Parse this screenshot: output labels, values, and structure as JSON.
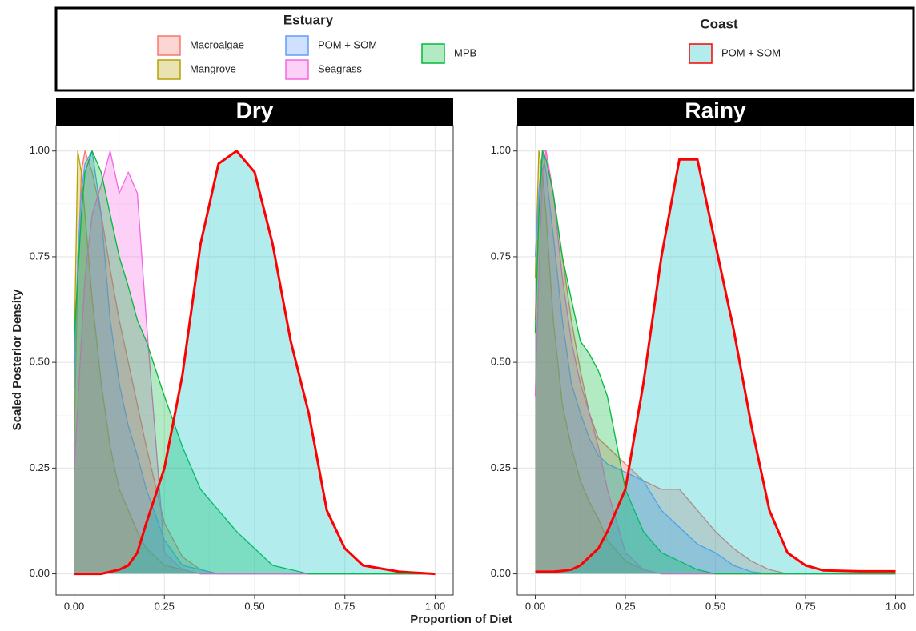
{
  "figure": {
    "xlabel": "Proportion of Diet",
    "ylabel": "Scaled Posterior Density",
    "legend_groups": [
      "Estuary",
      "Coast"
    ]
  },
  "chart_data": [
    {
      "type": "density",
      "title": "Dry",
      "x": [
        0,
        0.01,
        0.02,
        0.03,
        0.05,
        0.075,
        0.1,
        0.125,
        0.15,
        0.175,
        0.2,
        0.25,
        0.3,
        0.35,
        0.4,
        0.45,
        0.5,
        0.55,
        0.6,
        0.65,
        0.7,
        0.75,
        0.8,
        0.9,
        1
      ],
      "xlim": [
        -0.05,
        1.05
      ],
      "ylim": [
        -0.05,
        1.06
      ],
      "xticks": [
        {
          "value": 0,
          "label": "0.00"
        },
        {
          "value": 0.25,
          "label": "0.25"
        },
        {
          "value": 0.5,
          "label": "0.50"
        },
        {
          "value": 0.75,
          "label": "0.75"
        },
        {
          "value": 1,
          "label": "1.00"
        }
      ],
      "yticks": [
        {
          "value": 0,
          "label": "0.00"
        },
        {
          "value": 0.25,
          "label": "0.25"
        },
        {
          "value": 0.5,
          "label": "0.50"
        },
        {
          "value": 0.75,
          "label": "0.75"
        },
        {
          "value": 1,
          "label": "1.00"
        }
      ],
      "grid": true,
      "series": [
        {
          "name": "Macroalgae",
          "group": "Estuary",
          "color": "#F8766D",
          "values": [
            0.3,
            0.7,
            0.95,
            1.0,
            0.95,
            0.85,
            0.72,
            0.6,
            0.5,
            0.4,
            0.3,
            0.12,
            0.04,
            0.01,
            0,
            0,
            0,
            0,
            0,
            0,
            0,
            0,
            0,
            0,
            0
          ]
        },
        {
          "name": "Mangrove",
          "group": "Estuary",
          "color": "#B79F00",
          "values": [
            0.5,
            1.0,
            0.95,
            0.85,
            0.65,
            0.45,
            0.3,
            0.2,
            0.15,
            0.1,
            0.06,
            0.02,
            0.01,
            0,
            0,
            0,
            0,
            0,
            0,
            0,
            0,
            0,
            0,
            0,
            0
          ]
        },
        {
          "name": "POM + SOM",
          "group": "Estuary",
          "color": "#619CFF",
          "values": [
            0.44,
            0.75,
            0.9,
            0.97,
            1.0,
            0.85,
            0.6,
            0.45,
            0.35,
            0.28,
            0.2,
            0.08,
            0.02,
            0.01,
            0,
            0,
            0,
            0,
            0,
            0,
            0,
            0,
            0,
            0,
            0
          ]
        },
        {
          "name": "Seagrass",
          "group": "Estuary",
          "color": "#F564E3",
          "values": [
            0.24,
            0.4,
            0.55,
            0.7,
            0.85,
            0.92,
            1.0,
            0.9,
            0.95,
            0.9,
            0.6,
            0.05,
            0.01,
            0,
            0,
            0,
            0,
            0,
            0,
            0,
            0,
            0,
            0,
            0,
            0
          ]
        },
        {
          "name": "MPB",
          "group": "Estuary",
          "color": "#00BA38",
          "values": [
            0.55,
            0.7,
            0.85,
            0.95,
            1.0,
            0.95,
            0.85,
            0.75,
            0.68,
            0.6,
            0.55,
            0.42,
            0.3,
            0.2,
            0.15,
            0.1,
            0.06,
            0.02,
            0.01,
            0,
            0,
            0,
            0,
            0,
            0
          ]
        },
        {
          "name": "POM + SOM",
          "group": "Coast",
          "color": "#00BFC4",
          "line_color": "#FF0000",
          "values": [
            0,
            0,
            0,
            0,
            0,
            0,
            0.005,
            0.01,
            0.02,
            0.05,
            0.12,
            0.25,
            0.47,
            0.78,
            0.97,
            1.0,
            0.95,
            0.78,
            0.55,
            0.38,
            0.15,
            0.06,
            0.02,
            0.005,
            0
          ]
        }
      ]
    },
    {
      "type": "density",
      "title": "Rainy",
      "x": [
        0,
        0.01,
        0.02,
        0.03,
        0.05,
        0.075,
        0.1,
        0.125,
        0.15,
        0.175,
        0.2,
        0.25,
        0.3,
        0.35,
        0.4,
        0.45,
        0.5,
        0.55,
        0.6,
        0.65,
        0.7,
        0.75,
        0.8,
        0.9,
        1
      ],
      "xlim": [
        -0.05,
        1.05
      ],
      "ylim": [
        -0.05,
        1.06
      ],
      "xticks": [
        {
          "value": 0,
          "label": "0.00"
        },
        {
          "value": 0.25,
          "label": "0.25"
        },
        {
          "value": 0.5,
          "label": "0.50"
        },
        {
          "value": 0.75,
          "label": "0.75"
        },
        {
          "value": 1,
          "label": "1.00"
        }
      ],
      "yticks": [
        {
          "value": 0,
          "label": "0.00"
        },
        {
          "value": 0.25,
          "label": "0.25"
        },
        {
          "value": 0.5,
          "label": "0.50"
        },
        {
          "value": 0.75,
          "label": "0.75"
        },
        {
          "value": 1,
          "label": "1.00"
        }
      ],
      "grid": true,
      "series": [
        {
          "name": "Macroalgae",
          "group": "Estuary",
          "color": "#F8766D",
          "values": [
            0.6,
            0.9,
            1.0,
            1.0,
            0.9,
            0.75,
            0.6,
            0.48,
            0.38,
            0.32,
            0.3,
            0.26,
            0.22,
            0.2,
            0.2,
            0.15,
            0.1,
            0.06,
            0.03,
            0.01,
            0,
            0,
            0,
            0,
            0
          ]
        },
        {
          "name": "Mangrove",
          "group": "Estuary",
          "color": "#B79F00",
          "values": [
            0.7,
            1.0,
            0.95,
            0.85,
            0.6,
            0.4,
            0.3,
            0.22,
            0.17,
            0.13,
            0.08,
            0.03,
            0.01,
            0,
            0,
            0,
            0,
            0,
            0,
            0,
            0,
            0,
            0,
            0,
            0
          ]
        },
        {
          "name": "POM + SOM",
          "group": "Estuary",
          "color": "#619CFF",
          "values": [
            0.75,
            0.9,
            1.0,
            0.95,
            0.8,
            0.6,
            0.45,
            0.38,
            0.32,
            0.28,
            0.26,
            0.24,
            0.22,
            0.15,
            0.11,
            0.07,
            0.05,
            0.02,
            0.005,
            0,
            0,
            0,
            0,
            0,
            0
          ]
        },
        {
          "name": "Seagrass",
          "group": "Estuary",
          "color": "#F564E3",
          "values": [
            0.42,
            0.7,
            0.95,
            1.0,
            0.9,
            0.7,
            0.55,
            0.45,
            0.38,
            0.3,
            0.2,
            0.05,
            0.01,
            0,
            0,
            0,
            0,
            0,
            0,
            0,
            0,
            0,
            0,
            0,
            0
          ]
        },
        {
          "name": "MPB",
          "group": "Estuary",
          "color": "#00BA38",
          "values": [
            0.57,
            0.85,
            1.0,
            0.98,
            0.9,
            0.75,
            0.65,
            0.55,
            0.52,
            0.48,
            0.42,
            0.2,
            0.1,
            0.05,
            0.03,
            0.01,
            0,
            0,
            0,
            0,
            0,
            0,
            0,
            0,
            0
          ]
        },
        {
          "name": "POM + SOM",
          "group": "Coast",
          "color": "#00BFC4",
          "line_color": "#FF0000",
          "values": [
            0.005,
            0.005,
            0.005,
            0.005,
            0.005,
            0.007,
            0.01,
            0.02,
            0.04,
            0.06,
            0.1,
            0.2,
            0.45,
            0.75,
            0.98,
            0.98,
            0.78,
            0.58,
            0.35,
            0.15,
            0.05,
            0.02,
            0.008,
            0.006,
            0.006
          ]
        }
      ]
    }
  ]
}
